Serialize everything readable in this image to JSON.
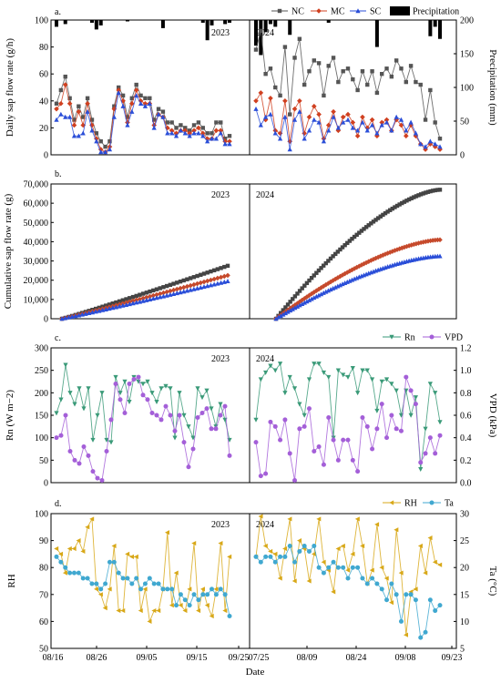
{
  "chart_data": [
    {
      "panel": "a.",
      "type": "line",
      "ylabel": "Daily sap flow rate (g/h)",
      "y2label": "Precipitation (mm)",
      "ylim": [
        0,
        100
      ],
      "y2lim": [
        0,
        200
      ],
      "y2_inverted": true,
      "yticks": [
        "0",
        "20",
        "40",
        "60",
        "80",
        "100"
      ],
      "y2ticks": [
        "0",
        "50",
        "100",
        "150",
        "200"
      ],
      "years": [
        "2023",
        "2024"
      ],
      "legend": [
        "NC",
        "MC",
        "SC",
        "Precipitation"
      ],
      "legend_position": "top-right",
      "series_2023": [
        {
          "name": "NC",
          "color": "#555555",
          "values": [
            38,
            48,
            58,
            42,
            26,
            36,
            28,
            42,
            26,
            16,
            10,
            6,
            10,
            36,
            50,
            44,
            28,
            42,
            52,
            44,
            42,
            42,
            26,
            34,
            32,
            24,
            24,
            20,
            22,
            20,
            18,
            22,
            24,
            20,
            16,
            16,
            24,
            24,
            12,
            14
          ]
        },
        {
          "name": "MC",
          "color": "#d04020",
          "values": [
            34,
            38,
            52,
            38,
            22,
            32,
            22,
            38,
            22,
            12,
            4,
            2,
            6,
            34,
            48,
            40,
            24,
            38,
            48,
            40,
            38,
            38,
            22,
            30,
            28,
            20,
            18,
            16,
            18,
            18,
            16,
            18,
            20,
            16,
            12,
            12,
            18,
            18,
            10,
            10
          ]
        },
        {
          "name": "SC",
          "color": "#2a4ed8",
          "values": [
            26,
            30,
            28,
            28,
            14,
            14,
            16,
            32,
            18,
            10,
            2,
            2,
            4,
            28,
            46,
            36,
            22,
            32,
            44,
            38,
            36,
            38,
            20,
            30,
            28,
            16,
            16,
            14,
            18,
            16,
            14,
            16,
            16,
            14,
            10,
            12,
            12,
            16,
            8,
            8
          ]
        }
      ],
      "series_2024": [
        {
          "name": "NC",
          "color": "#555555",
          "values": [
            78,
            92,
            60,
            64,
            50,
            44,
            80,
            30,
            72,
            86,
            52,
            62,
            70,
            68,
            44,
            66,
            72,
            54,
            62,
            64,
            56,
            48,
            62,
            52,
            62,
            46,
            60,
            64,
            58,
            70,
            64,
            54,
            66,
            54,
            52,
            26,
            48,
            24,
            12
          ]
        },
        {
          "name": "MC",
          "color": "#d04020",
          "values": [
            40,
            46,
            26,
            42,
            18,
            16,
            40,
            10,
            34,
            40,
            16,
            28,
            36,
            30,
            12,
            22,
            32,
            18,
            28,
            30,
            24,
            14,
            28,
            20,
            26,
            14,
            24,
            26,
            18,
            26,
            22,
            14,
            22,
            14,
            8,
            4,
            8,
            6,
            4
          ]
        },
        {
          "name": "SC",
          "color": "#2a4ed8",
          "values": [
            34,
            22,
            28,
            30,
            16,
            12,
            28,
            4,
            26,
            32,
            12,
            18,
            26,
            24,
            10,
            18,
            28,
            20,
            24,
            26,
            20,
            18,
            24,
            18,
            22,
            16,
            22,
            24,
            18,
            28,
            26,
            18,
            24,
            16,
            8,
            6,
            10,
            8,
            6
          ]
        }
      ],
      "precip_2023": [
        10,
        0,
        6,
        0,
        0,
        0,
        0,
        0,
        4,
        14,
        8,
        0,
        0,
        0,
        0,
        0,
        2,
        0,
        0,
        0,
        0,
        0,
        0,
        0,
        12,
        0,
        0,
        0,
        0,
        0,
        0,
        0,
        0,
        4,
        30,
        8,
        0,
        0,
        6,
        4
      ],
      "precip_2024": [
        38,
        52,
        18,
        6,
        10,
        0,
        0,
        22,
        0,
        0,
        0,
        0,
        0,
        0,
        0,
        4,
        0,
        0,
        0,
        0,
        0,
        0,
        0,
        0,
        0,
        40,
        0,
        0,
        0,
        0,
        0,
        0,
        0,
        0,
        0,
        0,
        24,
        10,
        28
      ]
    },
    {
      "panel": "b.",
      "type": "line",
      "ylabel": "Cumulative sap flow rate (g)",
      "ylim": [
        0,
        70000
      ],
      "yticks": [
        "0",
        "10,000",
        "20,000",
        "30,000",
        "40,000",
        "50,000",
        "60,000",
        "70,000"
      ],
      "years": [
        "2023",
        "2024"
      ],
      "series": [
        {
          "name": "NC",
          "color": "#444444",
          "end_2023": 27500,
          "end_2024": 67000
        },
        {
          "name": "MC",
          "color": "#c64a2c",
          "end_2023": 22500,
          "end_2024": 41000
        },
        {
          "name": "SC",
          "color": "#2a4ed8",
          "end_2023": 19500,
          "end_2024": 32500
        }
      ]
    },
    {
      "panel": "c.",
      "type": "line",
      "ylabel": "Rn (W m−2)",
      "y2label": "VPD (kPa)",
      "ylim": [
        0,
        300
      ],
      "y2lim": [
        0,
        1.2
      ],
      "yticks": [
        "0",
        "50",
        "100",
        "150",
        "200",
        "250",
        "300"
      ],
      "y2ticks": [
        "0.0",
        "0.2",
        "0.4",
        "0.6",
        "0.8",
        "1.0",
        "1.2"
      ],
      "years": [
        "2023",
        "2024"
      ],
      "legend": [
        "Rn",
        "VPD"
      ],
      "legend_position": "top-right",
      "Rn_2023": [
        155,
        185,
        262,
        200,
        175,
        210,
        165,
        210,
        95,
        150,
        200,
        95,
        90,
        235,
        200,
        225,
        180,
        235,
        225,
        220,
        225,
        200,
        180,
        210,
        215,
        210,
        100,
        200,
        150,
        125,
        100,
        210,
        190,
        205,
        165,
        125,
        175,
        140,
        95
      ],
      "VPD_2023": [
        0.4,
        0.42,
        0.6,
        0.28,
        0.2,
        0.17,
        0.32,
        0.24,
        0.1,
        0.04,
        0.02,
        0.28,
        0.56,
        0.88,
        0.74,
        0.62,
        0.88,
        0.92,
        0.94,
        0.78,
        0.74,
        0.62,
        0.6,
        0.56,
        0.68,
        0.6,
        0.46,
        0.6,
        0.36,
        0.14,
        0.3,
        0.58,
        0.62,
        0.66,
        0.48,
        0.48,
        0.6,
        0.68,
        0.24
      ],
      "Rn_2024": [
        140,
        230,
        245,
        260,
        250,
        265,
        200,
        235,
        210,
        175,
        150,
        230,
        265,
        265,
        245,
        235,
        100,
        250,
        240,
        235,
        255,
        200,
        250,
        250,
        230,
        160,
        225,
        230,
        220,
        205,
        150,
        205,
        150,
        190,
        30,
        120,
        220,
        200,
        135
      ],
      "VPD_2024": [
        0.36,
        0.06,
        0.08,
        0.54,
        0.5,
        0.38,
        0.56,
        0.26,
        0.02,
        0.48,
        0.5,
        0.66,
        0.28,
        0.32,
        0.16,
        0.58,
        0.38,
        0.2,
        0.38,
        0.38,
        0.2,
        0.1,
        0.58,
        0.5,
        0.3,
        0.48,
        0.7,
        0.4,
        0.6,
        0.48,
        0.46,
        0.94,
        0.82,
        0.7,
        0.18,
        0.26,
        0.4,
        0.26,
        0.42
      ]
    },
    {
      "panel": "d.",
      "type": "line",
      "ylabel": "RH",
      "y2label": "Ta (°C)",
      "ylim": [
        50,
        100
      ],
      "y2lim": [
        5,
        30
      ],
      "yticks": [
        "50",
        "60",
        "70",
        "80",
        "90",
        "100"
      ],
      "y2ticks": [
        "5",
        "10",
        "15",
        "20",
        "25",
        "30"
      ],
      "xlabel": "Date",
      "xticks_2023": [
        "08/16",
        "08/26",
        "09/05",
        "09/15",
        "09/25"
      ],
      "xticks_2024": [
        "07/25",
        "08/09",
        "08/24",
        "09/08",
        "09/23"
      ],
      "years": [
        "2023",
        "2024"
      ],
      "legend": [
        "RH",
        "Ta"
      ],
      "legend_position": "top-right",
      "RH_2023": [
        87,
        85,
        78,
        87,
        87,
        90,
        86,
        95,
        98,
        72,
        70,
        65,
        72,
        88,
        64,
        64,
        85,
        84,
        84,
        64,
        72,
        60,
        64,
        64,
        72,
        93,
        66,
        78,
        66,
        64,
        72,
        89,
        64,
        72,
        66,
        62,
        72,
        89,
        64,
        84
      ],
      "Ta_2023": [
        22,
        21,
        20,
        19,
        19,
        19,
        18,
        18,
        17,
        17,
        16,
        17,
        21,
        21,
        19,
        18,
        18,
        17,
        18,
        16,
        17,
        18,
        17,
        17,
        16,
        16,
        16,
        13,
        15,
        14,
        13,
        15,
        14,
        15,
        15,
        16,
        15,
        16,
        15,
        11
      ],
      "RH_2024": [
        84,
        99,
        88,
        86,
        85,
        76,
        87,
        98,
        75,
        90,
        87,
        75,
        85,
        98,
        82,
        79,
        71,
        87,
        88,
        79,
        85,
        98,
        88,
        74,
        79,
        96,
        80,
        76,
        67,
        94,
        78,
        55,
        71,
        72,
        88,
        78,
        91,
        82,
        81
      ],
      "Ta_2024": [
        22,
        21,
        22,
        22,
        21,
        22,
        22,
        24,
        21,
        23,
        24,
        23,
        24,
        20,
        19,
        20,
        21,
        20,
        20,
        18,
        20,
        20,
        18,
        17,
        18,
        17,
        16,
        14,
        17,
        15,
        10,
        15,
        15,
        14,
        7,
        8,
        14,
        12,
        13
      ]
    }
  ]
}
